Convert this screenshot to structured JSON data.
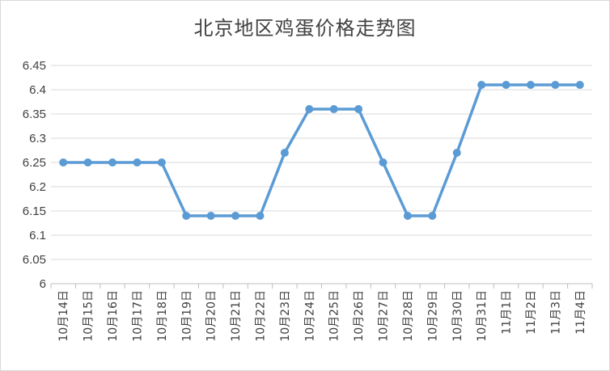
{
  "chart_data": {
    "type": "line",
    "title": "北京地区鸡蛋价格走势图",
    "categories": [
      "10月14日",
      "10月15日",
      "10月16日",
      "10月17日",
      "10月18日",
      "10月19日",
      "10月20日",
      "10月21日",
      "10月22日",
      "10月23日",
      "10月24日",
      "10月25日",
      "10月26日",
      "10月27日",
      "10月28日",
      "10月29日",
      "10月30日",
      "10月31日",
      "11月1日",
      "11月2日",
      "11月3日",
      "11月4日"
    ],
    "values": [
      6.25,
      6.25,
      6.25,
      6.25,
      6.25,
      6.14,
      6.14,
      6.14,
      6.14,
      6.27,
      6.36,
      6.36,
      6.36,
      6.25,
      6.14,
      6.14,
      6.27,
      6.41,
      6.41,
      6.41,
      6.41,
      6.41
    ],
    "y_ticks": [
      "6",
      "6.05",
      "6.1",
      "6.15",
      "6.2",
      "6.25",
      "6.3",
      "6.35",
      "6.4",
      "6.45"
    ],
    "ylim": [
      6,
      6.45
    ],
    "grid": true,
    "legend": "none",
    "colors": {
      "line": "#5B9BD5",
      "grid": "#d9d9d9",
      "axis": "#bfbfbf"
    }
  }
}
